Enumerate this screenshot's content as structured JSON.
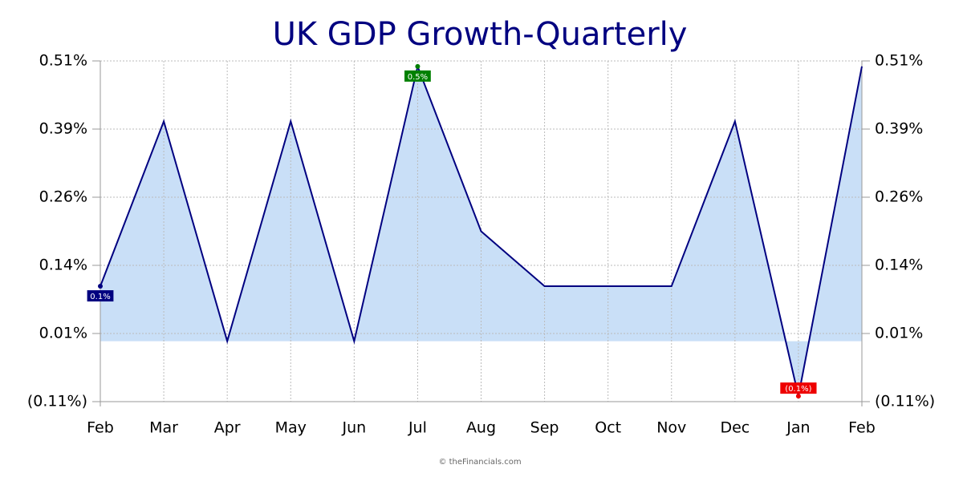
{
  "chart_data": {
    "type": "area",
    "title": "UK GDP Growth-Quarterly",
    "categories": [
      "Feb",
      "Mar",
      "Apr",
      "May",
      "Jun",
      "Jul",
      "Aug",
      "Sep",
      "Oct",
      "Nov",
      "Dec",
      "Jan",
      "Feb"
    ],
    "series": [
      {
        "name": "UK GDP Growth",
        "color": "#000080",
        "fill": "#c9dff7",
        "values": [
          0.1,
          0.4,
          0.0,
          0.4,
          0.0,
          0.5,
          0.2,
          0.1,
          0.1,
          0.1,
          0.4,
          -0.1,
          0.5
        ],
        "value_labels": [
          "0.1%",
          null,
          null,
          null,
          null,
          "0.5%",
          null,
          null,
          null,
          null,
          null,
          "(0.1%)",
          null
        ],
        "value_label_colors": [
          "#000080",
          null,
          null,
          null,
          null,
          "#008000",
          null,
          null,
          null,
          null,
          null,
          "#ee0000",
          null
        ]
      }
    ],
    "ylim": [
      -0.11,
      0.51
    ],
    "yticks": [
      {
        "value": -0.11,
        "label": "(0.11%)"
      },
      {
        "value": 0.014,
        "label": "0.01%"
      },
      {
        "value": 0.138,
        "label": "0.14%"
      },
      {
        "value": 0.262,
        "label": "0.26%"
      },
      {
        "value": 0.386,
        "label": "0.39%"
      },
      {
        "value": 0.51,
        "label": "0.51%"
      }
    ],
    "grid": true,
    "right_axis": true,
    "footer": "© theFinancials.com"
  }
}
